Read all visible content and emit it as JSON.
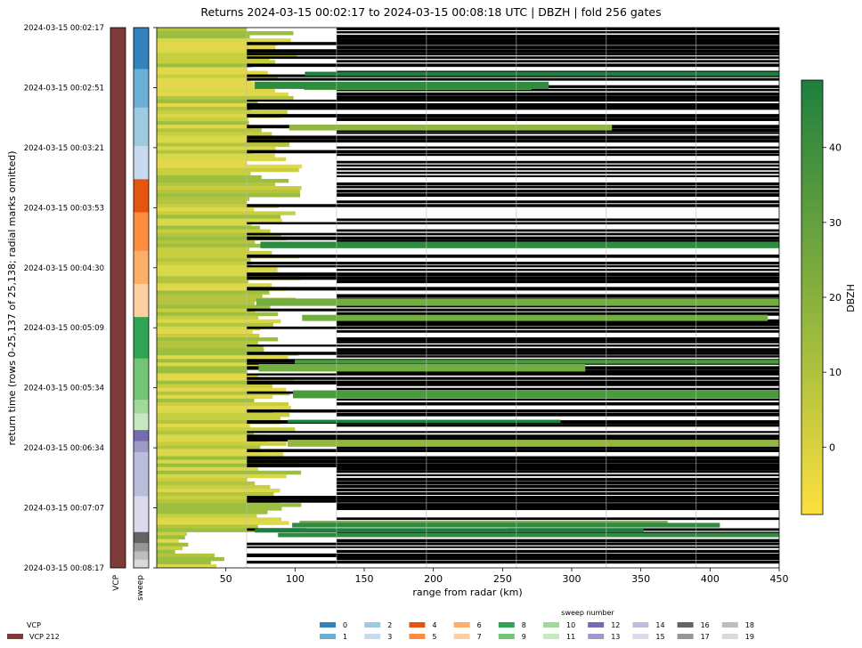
{
  "chart_data": {
    "type": "heatmap",
    "title": "Returns 2024-03-15 00:02:17 to 2024-03-15 00:08:18 UTC | DBZH | fold 256 gates",
    "ylabel": "return time (rows 0-25,137 of 25,138; radial marks omitted)",
    "xlabel": "range from radar (km)",
    "x_ticks": [
      50,
      100,
      150,
      200,
      250,
      300,
      350,
      400,
      450
    ],
    "xlim": [
      0,
      450
    ],
    "y_ticks": [
      "2024-03-15 00:02:17",
      "2024-03-15 00:02:51",
      "2024-03-15 00:03:21",
      "2024-03-15 00:03:53",
      "2024-03-15 00:04:30",
      "2024-03-15 00:05:09",
      "2024-03-15 00:05:34",
      "2024-03-15 00:06:34",
      "2024-03-15 00:07:07",
      "2024-03-15 00:08:17"
    ],
    "colorbar": {
      "label": "DBZH",
      "ticks": [
        0,
        10,
        20,
        30,
        40
      ],
      "range": [
        -9,
        49
      ],
      "colors": [
        "#fde03f",
        "#1d7f3e"
      ]
    },
    "strips": {
      "vcp_label": "VCP",
      "sweep_label": "sweep"
    },
    "sweep_blocks": [
      {
        "sweep": 0,
        "frac": 0.075
      },
      {
        "sweep": 1,
        "frac": 0.07
      },
      {
        "sweep": 2,
        "frac": 0.07
      },
      {
        "sweep": 3,
        "frac": 0.06
      },
      {
        "sweep": 4,
        "frac": 0.06
      },
      {
        "sweep": 5,
        "frac": 0.07
      },
      {
        "sweep": 6,
        "frac": 0.06
      },
      {
        "sweep": 7,
        "frac": 0.06
      },
      {
        "sweep": 8,
        "frac": 0.075
      },
      {
        "sweep": 9,
        "frac": 0.075
      },
      {
        "sweep": 10,
        "frac": 0.025
      },
      {
        "sweep": 11,
        "frac": 0.03
      },
      {
        "sweep": 12,
        "frac": 0.02
      },
      {
        "sweep": 13,
        "frac": 0.02
      },
      {
        "sweep": 14,
        "frac": 0.08
      },
      {
        "sweep": 15,
        "frac": 0.065
      },
      {
        "sweep": 16,
        "frac": 0.02
      },
      {
        "sweep": 17,
        "frac": 0.015
      },
      {
        "sweep": 18,
        "frac": 0.015
      },
      {
        "sweep": 19,
        "frac": 0.015
      }
    ],
    "vcp_legend": {
      "title": "VCP",
      "items": [
        {
          "label": "VCP 212",
          "color": "#7f3b38"
        }
      ]
    },
    "sweep_legend": {
      "title": "sweep number",
      "items": [
        {
          "label": "0",
          "color": "#3182bd"
        },
        {
          "label": "1",
          "color": "#6baed6"
        },
        {
          "label": "2",
          "color": "#9ecae1"
        },
        {
          "label": "3",
          "color": "#c6dbef"
        },
        {
          "label": "4",
          "color": "#e6550d"
        },
        {
          "label": "5",
          "color": "#fd8d3c"
        },
        {
          "label": "6",
          "color": "#fdae6b"
        },
        {
          "label": "7",
          "color": "#fdd0a2"
        },
        {
          "label": "8",
          "color": "#31a354"
        },
        {
          "label": "9",
          "color": "#74c476"
        },
        {
          "label": "10",
          "color": "#a1d99b"
        },
        {
          "label": "11",
          "color": "#c7e9c0"
        },
        {
          "label": "12",
          "color": "#756bb1"
        },
        {
          "label": "13",
          "color": "#9e9ac8"
        },
        {
          "label": "14",
          "color": "#bcbddc"
        },
        {
          "label": "15",
          "color": "#dadaeb"
        },
        {
          "label": "16",
          "color": "#636363"
        },
        {
          "label": "17",
          "color": "#969696"
        },
        {
          "label": "18",
          "color": "#bdbdbd"
        },
        {
          "label": "19",
          "color": "#d9d9d9"
        }
      ]
    }
  }
}
